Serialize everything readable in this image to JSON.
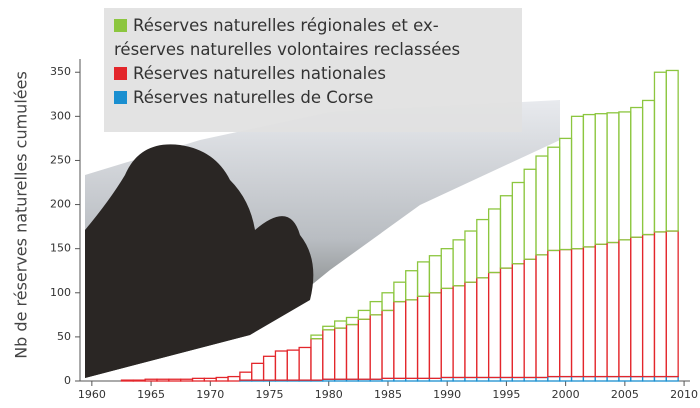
{
  "chart_data": {
    "type": "stacked_bar",
    "y_label": "Nb de réserves naturelles cumulées",
    "x": [
      1961,
      1962,
      1963,
      1964,
      1965,
      1966,
      1967,
      1968,
      1969,
      1970,
      1971,
      1972,
      1973,
      1974,
      1975,
      1976,
      1977,
      1978,
      1979,
      1980,
      1981,
      1982,
      1983,
      1984,
      1985,
      1986,
      1987,
      1988,
      1989,
      1990,
      1991,
      1992,
      1993,
      1994,
      1995,
      1996,
      1997,
      1998,
      1999,
      2000,
      2001,
      2002,
      2003,
      2004,
      2005,
      2006,
      2007,
      2008,
      2009
    ],
    "series": [
      {
        "name": "Réserves naturelles de Corse",
        "color": "#1a8fd0",
        "values": [
          0,
          0,
          0,
          0,
          0,
          0,
          0,
          0,
          0,
          0,
          0,
          0,
          1,
          1,
          1,
          1,
          1,
          1,
          1,
          2,
          2,
          2,
          2,
          2,
          3,
          3,
          3,
          3,
          3,
          4,
          4,
          4,
          4,
          4,
          4,
          4,
          4,
          4,
          5,
          5,
          5,
          5,
          5,
          5,
          5,
          5,
          5,
          5,
          5
        ]
      },
      {
        "name": "Réserves naturelles nationales",
        "color": "#e3262b",
        "values": [
          0,
          0,
          1,
          1,
          2,
          2,
          2,
          2,
          3,
          3,
          4,
          5,
          9,
          19,
          27,
          33,
          34,
          37,
          47,
          56,
          58,
          62,
          68,
          73,
          77,
          87,
          89,
          93,
          97,
          101,
          104,
          108,
          113,
          119,
          124,
          129,
          134,
          139,
          143,
          144,
          145,
          147,
          150,
          152,
          155,
          158,
          161,
          164,
          165
        ]
      },
      {
        "name": "Réserves naturelles régionales et ex-\nréserves naturelles volontaires reclassées",
        "color": "#8cc63f",
        "values": [
          0,
          0,
          0,
          0,
          0,
          0,
          0,
          0,
          0,
          0,
          0,
          0,
          0,
          0,
          0,
          0,
          0,
          0,
          4,
          4,
          8,
          8,
          10,
          15,
          20,
          22,
          33,
          39,
          42,
          45,
          52,
          58,
          66,
          72,
          82,
          92,
          102,
          112,
          117,
          126,
          150,
          150,
          148,
          147,
          145,
          147,
          152,
          181,
          182
        ]
      }
    ],
    "legend_order": [
      2,
      1,
      0
    ],
    "xlim": [
      1959,
      2010.5
    ],
    "xticks": [
      1960,
      1965,
      1970,
      1975,
      1980,
      1985,
      1990,
      1995,
      2000,
      2005,
      2010
    ],
    "ylim": [
      0,
      365
    ],
    "yticks": [
      0,
      50,
      100,
      150,
      200,
      250,
      300,
      350
    ]
  }
}
